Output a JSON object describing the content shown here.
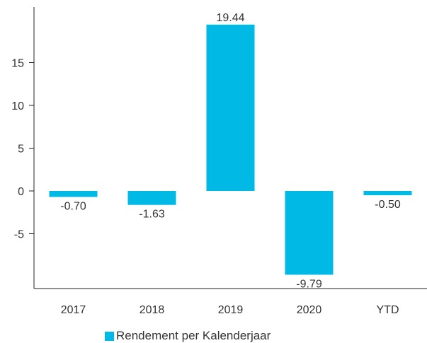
{
  "chart_data": {
    "type": "bar",
    "categories": [
      "2017",
      "2018",
      "2019",
      "2020",
      "YTD"
    ],
    "series": [
      {
        "name": "Rendement per Kalenderjaar",
        "values": [
          -0.7,
          -1.63,
          19.44,
          -9.79,
          -0.5
        ],
        "value_labels": [
          "-0.70",
          "-1.63",
          "19.44",
          "-9.79",
          "-0.50"
        ],
        "color": "#00b9e4"
      }
    ],
    "y_ticks": [
      15,
      10,
      5,
      0,
      -5
    ],
    "y_tick_labels": [
      "15",
      "10",
      "5",
      "0",
      "-5"
    ],
    "ylim": [
      -11,
      21.5
    ],
    "grid": false,
    "legend_position": "bottom-center"
  }
}
